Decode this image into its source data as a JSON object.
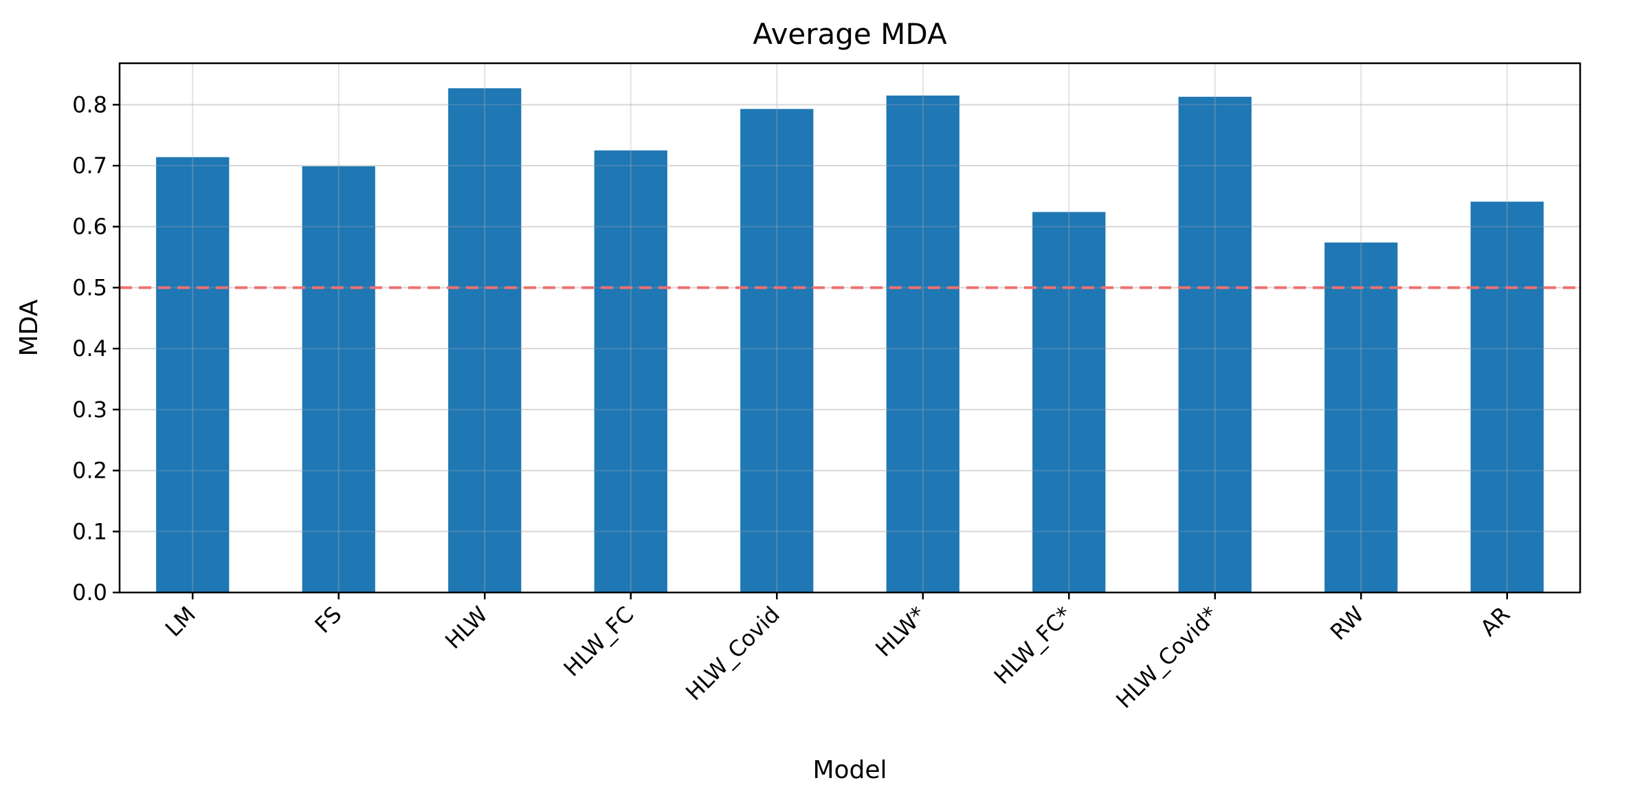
{
  "chart_data": {
    "type": "bar",
    "title": "Average MDA",
    "xlabel": "Model",
    "ylabel": "MDA",
    "categories": [
      "LM",
      "FS",
      "HLW",
      "HLW_FC",
      "HLW_Covid",
      "HLW*",
      "HLW_FC*",
      "HLW_Covid*",
      "RW",
      "AR"
    ],
    "values": [
      0.714,
      0.699,
      0.827,
      0.725,
      0.793,
      0.815,
      0.624,
      0.813,
      0.574,
      0.641
    ],
    "ylim": [
      0,
      0.868
    ],
    "yticks": [
      0.0,
      0.1,
      0.2,
      0.3,
      0.4,
      0.5,
      0.6,
      0.7,
      0.8
    ],
    "ytick_labels": [
      "0.0",
      "0.1",
      "0.2",
      "0.3",
      "0.4",
      "0.5",
      "0.6",
      "0.7",
      "0.8"
    ],
    "reference_line": {
      "y": 0.5,
      "style": "dashed",
      "color": "#ef7070"
    },
    "bar_color": "#1f77b4",
    "grid": true,
    "grid_color": "#e6e6e6",
    "legend": "none"
  }
}
